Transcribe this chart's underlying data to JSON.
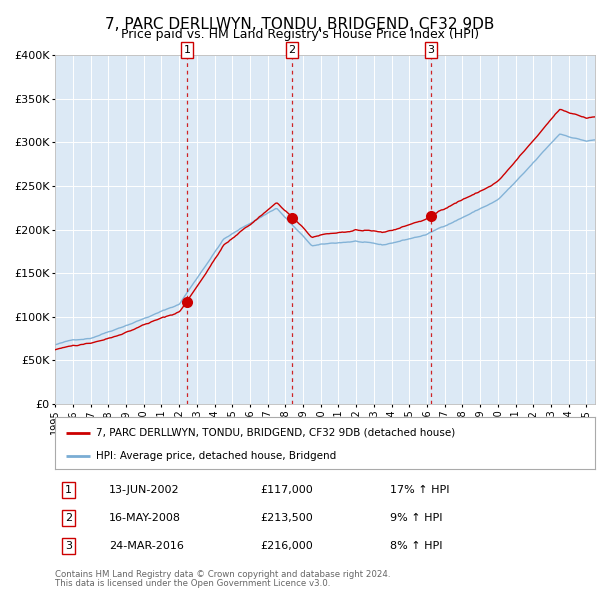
{
  "title": "7, PARC DERLLWYN, TONDU, BRIDGEND, CF32 9DB",
  "subtitle": "Price paid vs. HM Land Registry's House Price Index (HPI)",
  "title_fontsize": 11,
  "subtitle_fontsize": 9,
  "background_color": "#ffffff",
  "plot_bg_color": "#dce9f5",
  "grid_color": "#ffffff",
  "red_line_color": "#cc0000",
  "blue_line_color": "#7aadd4",
  "sale_marker_color": "#cc0000",
  "dashed_line_color": "#cc0000",
  "ylim": [
    0,
    400000
  ],
  "yticks": [
    0,
    50000,
    100000,
    150000,
    200000,
    250000,
    300000,
    350000,
    400000
  ],
  "ytick_labels": [
    "£0",
    "£50K",
    "£100K",
    "£150K",
    "£200K",
    "£250K",
    "£300K",
    "£350K",
    "£400K"
  ],
  "xmin": 1995.0,
  "xmax": 2025.5,
  "sales": [
    {
      "label": "1",
      "date": 2002.44,
      "price": 117000
    },
    {
      "label": "2",
      "date": 2008.37,
      "price": 213500
    },
    {
      "label": "3",
      "date": 2016.22,
      "price": 216000
    }
  ],
  "sale_display": [
    {
      "num": "1",
      "date_str": "13-JUN-2002",
      "price_str": "£117,000",
      "pct_str": "17% ↑ HPI"
    },
    {
      "num": "2",
      "date_str": "16-MAY-2008",
      "price_str": "£213,500",
      "pct_str": "9% ↑ HPI"
    },
    {
      "num": "3",
      "date_str": "24-MAR-2016",
      "price_str": "£216,000",
      "pct_str": "8% ↑ HPI"
    }
  ],
  "legend_line1": "7, PARC DERLLWYN, TONDU, BRIDGEND, CF32 9DB (detached house)",
  "legend_line2": "HPI: Average price, detached house, Bridgend",
  "footer_line1": "Contains HM Land Registry data © Crown copyright and database right 2024.",
  "footer_line2": "This data is licensed under the Open Government Licence v3.0."
}
